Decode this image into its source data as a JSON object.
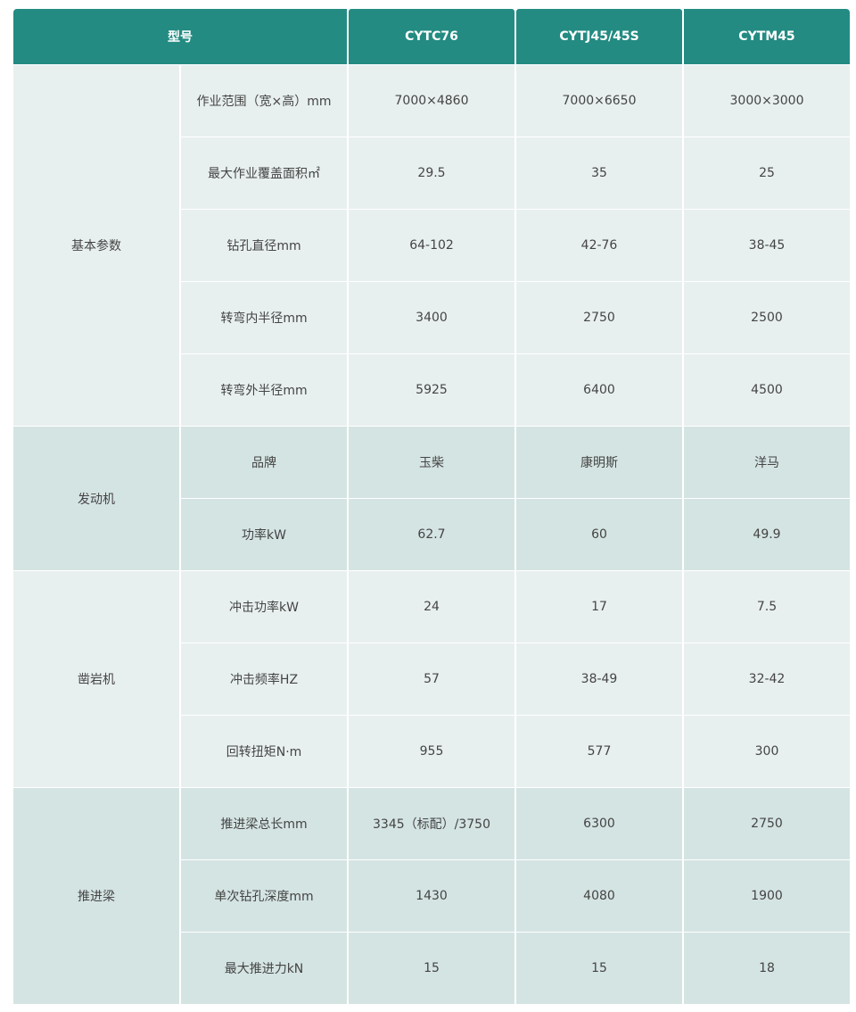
{
  "header": {
    "model_label": "型号",
    "models": [
      "CYTC76",
      "CYTJ45/45S",
      "CYTM45"
    ]
  },
  "colors": {
    "header": "#238b82",
    "row_light": "#e8f0ef",
    "row_dark": "#d4e4e2"
  },
  "groups": [
    {
      "name": "基本参数",
      "shade": "light",
      "rows": [
        {
          "param": "作业范围（宽×高）mm",
          "values": [
            "7000×4860",
            "7000×6650",
            "3000×3000"
          ]
        },
        {
          "param": "最大作业覆盖面积㎡",
          "values": [
            "29.5",
            "35",
            "25"
          ]
        },
        {
          "param": "钻孔直径mm",
          "values": [
            "64-102",
            "42-76",
            "38-45"
          ]
        },
        {
          "param": "转弯内半径mm",
          "values": [
            "3400",
            "2750",
            "2500"
          ]
        },
        {
          "param": "转弯外半径mm",
          "values": [
            "5925",
            "6400",
            "4500"
          ]
        }
      ]
    },
    {
      "name": "发动机",
      "shade": "dark",
      "rows": [
        {
          "param": "品牌",
          "values": [
            "玉柴",
            "康明斯",
            "洋马"
          ]
        },
        {
          "param": "功率kW",
          "values": [
            "62.7",
            "60",
            "49.9"
          ]
        }
      ]
    },
    {
      "name": "凿岩机",
      "shade": "light",
      "rows": [
        {
          "param": "冲击功率kW",
          "values": [
            "24",
            "17",
            "7.5"
          ]
        },
        {
          "param": "冲击频率HZ",
          "values": [
            "57",
            "38-49",
            "32-42"
          ]
        },
        {
          "param": "回转扭矩N·m",
          "values": [
            "955",
            "577",
            "300"
          ]
        }
      ]
    },
    {
      "name": "推进梁",
      "shade": "dark",
      "rows": [
        {
          "param": "推进梁总长mm",
          "values": [
            "3345（标配）/3750",
            "6300",
            "2750"
          ]
        },
        {
          "param": "单次钻孔深度mm",
          "values": [
            "1430",
            "4080",
            "1900"
          ]
        },
        {
          "param": "最大推进力kN",
          "values": [
            "15",
            "15",
            "18"
          ]
        }
      ]
    }
  ]
}
